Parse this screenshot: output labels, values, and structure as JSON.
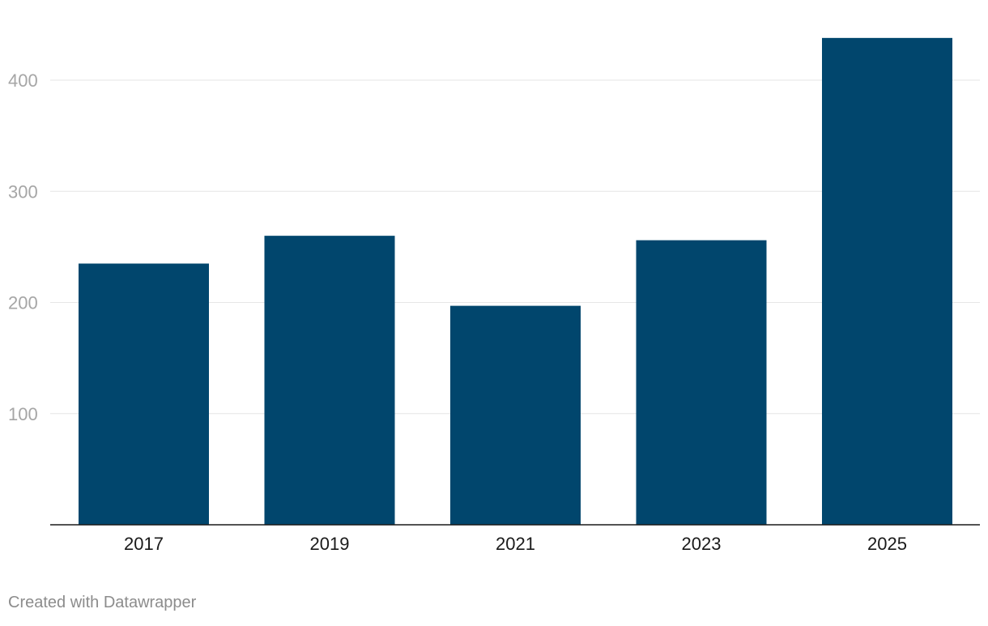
{
  "chart_data": {
    "type": "bar",
    "categories": [
      "2017",
      "2019",
      "2021",
      "2023",
      "2025"
    ],
    "values": [
      235,
      260,
      197,
      256,
      438
    ],
    "ylim": [
      0,
      438
    ],
    "yticks": [
      100,
      200,
      300,
      400
    ],
    "grid": true,
    "colors": {
      "bar": "#01466d",
      "grid": "#e6e6e6",
      "axis": "#1a1a1a"
    }
  },
  "footer": {
    "credit": "Created with Datawrapper"
  }
}
